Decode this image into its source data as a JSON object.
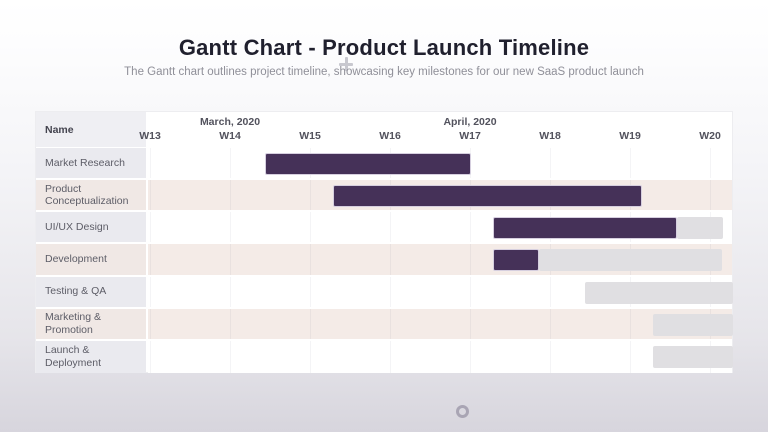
{
  "page": {
    "title": "Gantt Chart - Product Launch Timeline",
    "subtitle": "The Gantt chart outlines project timeline, showcasing key milestones for our new SaaS product launch"
  },
  "chart_data": {
    "type": "gantt",
    "name_column_header": "Name",
    "months": [
      {
        "label": "March, 2020",
        "at_week": 14
      },
      {
        "label": "April, 2020",
        "at_week": 17
      }
    ],
    "weeks": [
      "W13",
      "W14",
      "W15",
      "W16",
      "W17",
      "W18",
      "W19",
      "W20"
    ],
    "first_week": 13,
    "tasks": [
      {
        "name": "Market Research",
        "start_week": 14.44,
        "end_week": 17.01,
        "completed_until_week": 17.01
      },
      {
        "name": "Product Conceptualization",
        "start_week": 15.29,
        "end_week": 19.15,
        "completed_until_week": 19.15
      },
      {
        "name": "UI/UX Design",
        "start_week": 17.29,
        "end_week": 20.16,
        "completed_until_week": 19.59
      },
      {
        "name": "Development",
        "start_week": 17.29,
        "end_week": 20.15,
        "completed_until_week": 17.86
      },
      {
        "name": "Testing & QA",
        "start_week": 18.44,
        "end_week": 20.29,
        "completed_until_week": 18.44
      },
      {
        "name": "Marketing & Promotion",
        "start_week": 19.29,
        "end_week": 20.29,
        "completed_until_week": 19.29
      },
      {
        "name": "Launch & Deployment",
        "start_week": 19.29,
        "end_week": 20.29,
        "completed_until_week": 19.29
      }
    ],
    "colors": {
      "completed_bar": "#453158",
      "remaining_bar": "#e0dfe2",
      "alt_row_bg": "#f4ebe7",
      "name_cell_bg": "#eaeaef",
      "alt_name_cell_bg": "#f0e8e5"
    }
  }
}
